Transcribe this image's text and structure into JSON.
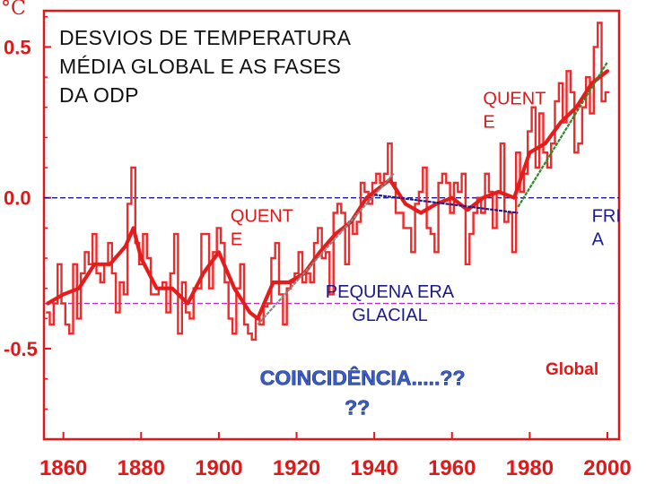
{
  "chart_data": {
    "type": "line",
    "title": "DESVIOS DE TEMPERATURA MÉDIA GLOBAL  E AS FASES DA ODP",
    "title_lines": [
      "DESVIOS DE TEMPERATURA",
      "MÉDIA GLOBAL  E AS FASES",
      "DA ODP"
    ],
    "ylabel_symbol": "°C",
    "series_label": "Global",
    "xlim": [
      1855,
      2003
    ],
    "ylim": [
      -0.8,
      0.62
    ],
    "xticks": [
      1860,
      1880,
      1900,
      1920,
      1940,
      1960,
      1980,
      2000
    ],
    "xtick_labels": [
      "1860",
      "1880",
      "1900",
      "1920",
      "1940",
      "1960",
      "1980",
      "2000"
    ],
    "yticks": [
      0.5,
      0.0,
      -0.5
    ],
    "ytick_labels": [
      "0.5",
      "0.0",
      "-0.5"
    ],
    "annual": {
      "x": [
        1856,
        1857,
        1858,
        1859,
        1860,
        1861,
        1862,
        1863,
        1864,
        1865,
        1866,
        1867,
        1868,
        1869,
        1870,
        1871,
        1872,
        1873,
        1874,
        1875,
        1876,
        1877,
        1878,
        1879,
        1880,
        1881,
        1882,
        1883,
        1884,
        1885,
        1886,
        1887,
        1888,
        1889,
        1890,
        1891,
        1892,
        1893,
        1894,
        1895,
        1896,
        1897,
        1898,
        1899,
        1900,
        1901,
        1902,
        1903,
        1904,
        1905,
        1906,
        1907,
        1908,
        1909,
        1910,
        1911,
        1912,
        1913,
        1914,
        1915,
        1916,
        1917,
        1918,
        1919,
        1920,
        1921,
        1922,
        1923,
        1924,
        1925,
        1926,
        1927,
        1928,
        1929,
        1930,
        1931,
        1932,
        1933,
        1934,
        1935,
        1936,
        1937,
        1938,
        1939,
        1940,
        1941,
        1942,
        1943,
        1944,
        1945,
        1946,
        1947,
        1948,
        1949,
        1950,
        1951,
        1952,
        1953,
        1954,
        1955,
        1956,
        1957,
        1958,
        1959,
        1960,
        1961,
        1962,
        1963,
        1964,
        1965,
        1966,
        1967,
        1968,
        1969,
        1970,
        1971,
        1972,
        1973,
        1974,
        1975,
        1976,
        1977,
        1978,
        1979,
        1980,
        1981,
        1982,
        1983,
        1984,
        1985,
        1986,
        1987,
        1988,
        1989,
        1990,
        1991,
        1992,
        1993,
        1994,
        1995,
        1996,
        1997,
        1998,
        1999,
        2000
      ],
      "y": [
        -0.38,
        -0.42,
        -0.35,
        -0.22,
        -0.35,
        -0.42,
        -0.45,
        -0.22,
        -0.4,
        -0.25,
        -0.18,
        -0.22,
        -0.12,
        -0.25,
        -0.28,
        -0.22,
        -0.15,
        -0.25,
        -0.38,
        -0.28,
        -0.32,
        -0.02,
        0.1,
        -0.15,
        -0.22,
        -0.12,
        -0.2,
        -0.32,
        -0.32,
        -0.3,
        -0.28,
        -0.38,
        -0.25,
        -0.12,
        -0.45,
        -0.28,
        -0.38,
        -0.4,
        -0.3,
        -0.3,
        -0.12,
        -0.12,
        -0.3,
        -0.18,
        -0.1,
        -0.15,
        -0.28,
        -0.4,
        -0.45,
        -0.3,
        -0.22,
        -0.42,
        -0.45,
        -0.47,
        -0.4,
        -0.42,
        -0.36,
        -0.35,
        -0.2,
        -0.15,
        -0.32,
        -0.42,
        -0.3,
        -0.28,
        -0.25,
        -0.18,
        -0.28,
        -0.25,
        -0.28,
        -0.15,
        -0.1,
        -0.2,
        -0.18,
        -0.32,
        -0.05,
        -0.02,
        -0.05,
        -0.22,
        -0.08,
        -0.12,
        -0.08,
        0.05,
        0.02,
        -0.02,
        0.05,
        0.08,
        0.05,
        0.08,
        0.18,
        0.05,
        -0.05,
        -0.05,
        -0.1,
        -0.1,
        -0.18,
        -0.02,
        0.02,
        0.1,
        -0.1,
        -0.12,
        -0.18,
        0.05,
        0.08,
        0.05,
        -0.05,
        0.05,
        0.02,
        0.08,
        -0.22,
        -0.12,
        -0.05,
        0.0,
        -0.05,
        0.08,
        0.02,
        -0.1,
        0.02,
        0.18,
        -0.08,
        -0.05,
        -0.18,
        0.15,
        0.02,
        0.08,
        0.22,
        0.3,
        0.1,
        0.28,
        0.15,
        0.1,
        0.18,
        0.32,
        0.38,
        0.25,
        0.42,
        0.35,
        0.15,
        0.18,
        0.3,
        0.4,
        0.28,
        0.5,
        0.58,
        0.32,
        0.35
      ]
    },
    "smoothed": {
      "x": [
        1856,
        1860,
        1864,
        1868,
        1872,
        1876,
        1878,
        1880,
        1884,
        1888,
        1892,
        1896,
        1900,
        1904,
        1908,
        1910,
        1914,
        1918,
        1922,
        1926,
        1930,
        1934,
        1938,
        1940,
        1944,
        1948,
        1952,
        1956,
        1960,
        1964,
        1968,
        1972,
        1976,
        1980,
        1984,
        1988,
        1992,
        1996,
        2000
      ],
      "y": [
        -0.35,
        -0.32,
        -0.3,
        -0.22,
        -0.22,
        -0.16,
        -0.1,
        -0.2,
        -0.3,
        -0.3,
        -0.35,
        -0.25,
        -0.18,
        -0.3,
        -0.38,
        -0.4,
        -0.28,
        -0.28,
        -0.25,
        -0.18,
        -0.12,
        -0.08,
        0.0,
        0.02,
        0.06,
        -0.02,
        -0.05,
        -0.02,
        0.0,
        -0.04,
        0.0,
        0.02,
        0.0,
        0.15,
        0.18,
        0.25,
        0.3,
        0.38,
        0.42
      ]
    },
    "reference_lines": [
      {
        "name": "zero-line",
        "y": 0.0,
        "color": "#1a1a8c"
      },
      {
        "name": "little-ice-age-line",
        "y": -0.35,
        "color": "#b030c8"
      }
    ],
    "phase_trends": [
      {
        "name": "warm-trend-1910-1945",
        "x": [
          1910,
          1945
        ],
        "y": [
          -0.42,
          0.08
        ],
        "color": "#888888"
      },
      {
        "name": "cool-trend-1940-1977",
        "x": [
          1940,
          1977
        ],
        "y": [
          0.01,
          -0.05
        ],
        "color": "#1a1a8c"
      },
      {
        "name": "warm-trend-1977-2000",
        "x": [
          1977,
          2000
        ],
        "y": [
          -0.03,
          0.45
        ],
        "color": "#2a8a2a"
      }
    ],
    "annotations": [
      {
        "name": "label-quente-1",
        "lines": [
          "QUENT",
          "E"
        ],
        "x": 1903,
        "y": -0.08,
        "color": "#e01818"
      },
      {
        "name": "label-quente-2",
        "lines": [
          "QUENT",
          "E"
        ],
        "x": 1968,
        "y": 0.31,
        "color": "#e01818"
      },
      {
        "name": "label-fria",
        "lines": [
          "FRI",
          "A"
        ],
        "x": 1996,
        "y": -0.08,
        "color": "#1a1a8c"
      },
      {
        "name": "label-pequena-era",
        "lines": [
          "PEQUENA ERA",
          "GLACIAL"
        ],
        "x": 1944,
        "y": -0.33,
        "color": "#1a1a8c"
      },
      {
        "name": "label-coincidencia",
        "lines": [
          "COINCIDÊNCIA.....??",
          "??"
        ],
        "x": 1937,
        "y": -0.62,
        "color": "#3a5ec8"
      }
    ]
  }
}
